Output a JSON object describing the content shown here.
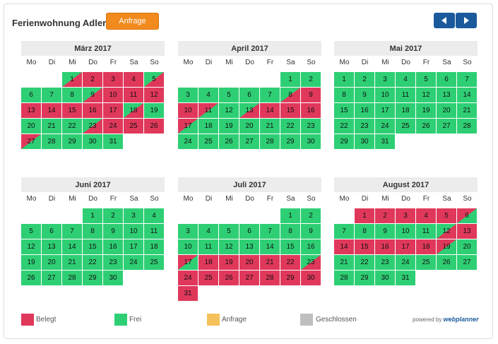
{
  "header": {
    "title": "Ferienwohnung Adler",
    "request_button": "Anfrage",
    "prev_icon": "chevron-left-icon",
    "next_icon": "chevron-right-icon"
  },
  "weekdays": [
    "Mo",
    "Di",
    "Mi",
    "Do",
    "Fr",
    "Sa",
    "So"
  ],
  "months": [
    {
      "name": "März 2017",
      "offset": 2,
      "days": 31,
      "booked": [
        2,
        3,
        4,
        10,
        11,
        12,
        13,
        14,
        15,
        16,
        17,
        24,
        25,
        26
      ],
      "arrival": [
        1,
        5,
        9,
        18,
        23
      ],
      "departure": [
        27
      ]
    },
    {
      "name": "April 2017",
      "offset": 5,
      "days": 30,
      "booked": [
        9,
        10,
        14,
        15,
        16
      ],
      "arrival": [
        8,
        13
      ],
      "departure": [
        11,
        17
      ]
    },
    {
      "name": "Mai 2017",
      "offset": 0,
      "days": 31,
      "booked": [],
      "arrival": [],
      "departure": []
    },
    {
      "name": "Juni 2017",
      "offset": 3,
      "days": 30,
      "booked": [],
      "arrival": [],
      "departure": []
    },
    {
      "name": "Juli 2017",
      "offset": 5,
      "days": 31,
      "booked": [
        18,
        19,
        20,
        21,
        22,
        24,
        25,
        26,
        27,
        28,
        29,
        30,
        31
      ],
      "arrival": [
        23
      ],
      "departure": [
        17
      ]
    },
    {
      "name": "August 2017",
      "offset": 1,
      "days": 31,
      "booked": [
        1,
        2,
        3,
        4,
        5,
        13,
        14,
        15,
        16,
        17,
        18
      ],
      "arrival": [
        12
      ],
      "departure": [
        6,
        19
      ]
    }
  ],
  "legend": [
    {
      "label": "Belegt",
      "color": "#e0385b"
    },
    {
      "label": "Frei",
      "color": "#2ecf74"
    },
    {
      "label": "Anfrage",
      "color": "#f5c15a"
    },
    {
      "label": "Geschlossen",
      "color": "#bfbfbf"
    }
  ],
  "footer": {
    "powered_text": "powered by",
    "brand": "webplanner"
  }
}
